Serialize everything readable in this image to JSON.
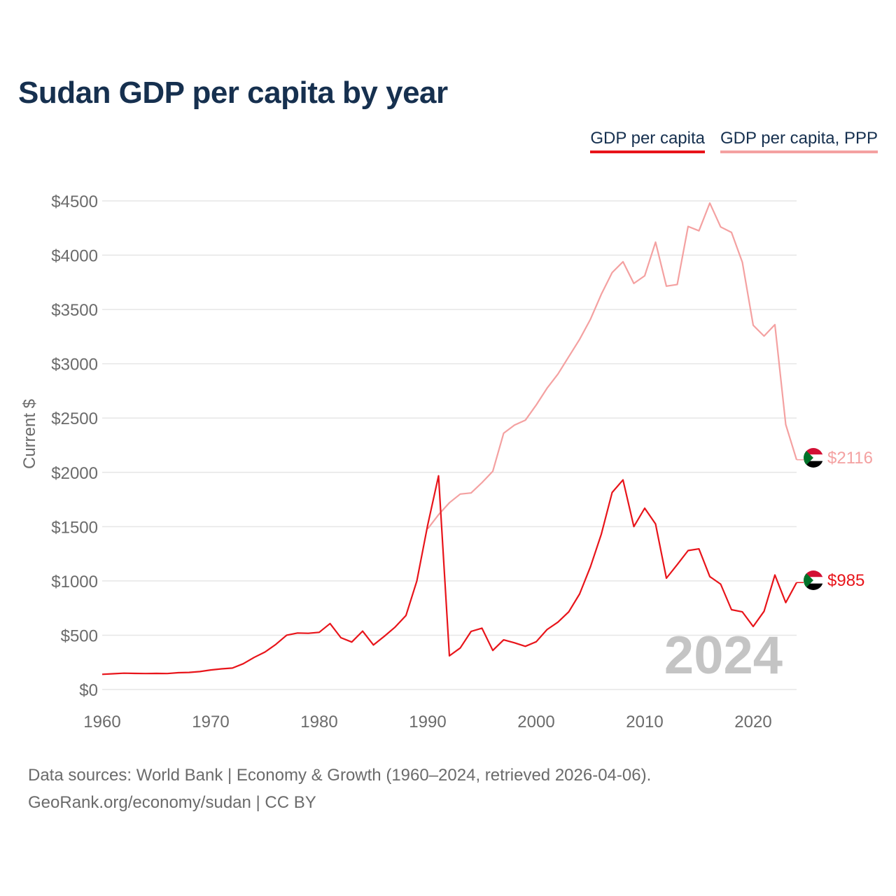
{
  "title": "Sudan GDP per capita by year",
  "legend": {
    "gdp_label": "GDP per capita",
    "ppp_label": "GDP per capita, PPP"
  },
  "colors": {
    "gdp": "#e8141a",
    "ppp": "#f4a1a1",
    "title": "#16304f",
    "grid": "#e6e6e6",
    "watermark": "#c4c4c4"
  },
  "year_watermark": "2024",
  "source_line1": "Data sources: World Bank | Economy & Growth (1960–2024, retrieved 2026-04-06).",
  "source_line2": "GeoRank.org/economy/sudan | CC BY",
  "end_labels": {
    "gdp": "$985",
    "ppp": "$2116"
  },
  "chart_data": {
    "type": "line",
    "title": "Sudan GDP per capita by year",
    "ylabel": "Current $",
    "xlabel": "",
    "xlim": [
      1960,
      2024
    ],
    "ylim": [
      0,
      4500
    ],
    "x_ticks": [
      1960,
      1970,
      1980,
      1990,
      2000,
      2010,
      2020
    ],
    "y_ticks": [
      0,
      500,
      1000,
      1500,
      2000,
      2500,
      3000,
      3500,
      4000,
      4500
    ],
    "y_tick_labels": [
      "$0",
      "$500",
      "$1000",
      "$1500",
      "$2000",
      "$2500",
      "$3000",
      "$3500",
      "$4000",
      "$4500"
    ],
    "grid": true,
    "legend_position": "top-right",
    "series": [
      {
        "name": "GDP per capita",
        "x": [
          1960,
          1961,
          1962,
          1963,
          1964,
          1965,
          1966,
          1967,
          1968,
          1969,
          1970,
          1971,
          1972,
          1973,
          1974,
          1975,
          1976,
          1977,
          1978,
          1979,
          1980,
          1981,
          1982,
          1983,
          1984,
          1985,
          1986,
          1987,
          1988,
          1989,
          1990,
          1991,
          1992,
          1993,
          1994,
          1995,
          1996,
          1997,
          1998,
          1999,
          2000,
          2001,
          2002,
          2003,
          2004,
          2005,
          2006,
          2007,
          2008,
          2009,
          2010,
          2011,
          2012,
          2013,
          2014,
          2015,
          2016,
          2017,
          2018,
          2019,
          2020,
          2021,
          2022,
          2023,
          2024
        ],
        "values": [
          140,
          145,
          150,
          148,
          147,
          148,
          147,
          155,
          157,
          165,
          180,
          190,
          197,
          237,
          295,
          345,
          415,
          500,
          520,
          518,
          527,
          607,
          477,
          437,
          538,
          410,
          490,
          575,
          682,
          1000,
          1515,
          1968,
          310,
          382,
          535,
          565,
          360,
          457,
          430,
          398,
          440,
          552,
          620,
          715,
          880,
          1130,
          1430,
          1815,
          1930,
          1500,
          1670,
          1525,
          1025,
          1150,
          1280,
          1295,
          1040,
          970,
          735,
          715,
          580,
          720,
          1055,
          800,
          985
        ]
      },
      {
        "name": "GDP per capita, PPP",
        "x": [
          1990,
          1991,
          1992,
          1993,
          1994,
          1995,
          1996,
          1997,
          1998,
          1999,
          2000,
          2001,
          2002,
          2003,
          2004,
          2005,
          2006,
          2007,
          2008,
          2009,
          2010,
          2011,
          2012,
          2013,
          2014,
          2015,
          2016,
          2017,
          2018,
          2019,
          2020,
          2021,
          2022,
          2023,
          2024
        ],
        "values": [
          1480,
          1610,
          1720,
          1800,
          1810,
          1905,
          2010,
          2360,
          2435,
          2480,
          2620,
          2775,
          2905,
          3065,
          3225,
          3410,
          3640,
          3840,
          3940,
          3740,
          3810,
          4120,
          3715,
          3730,
          4265,
          4225,
          4480,
          4260,
          4210,
          3935,
          3355,
          3255,
          3360,
          2440,
          2116
        ]
      }
    ]
  }
}
